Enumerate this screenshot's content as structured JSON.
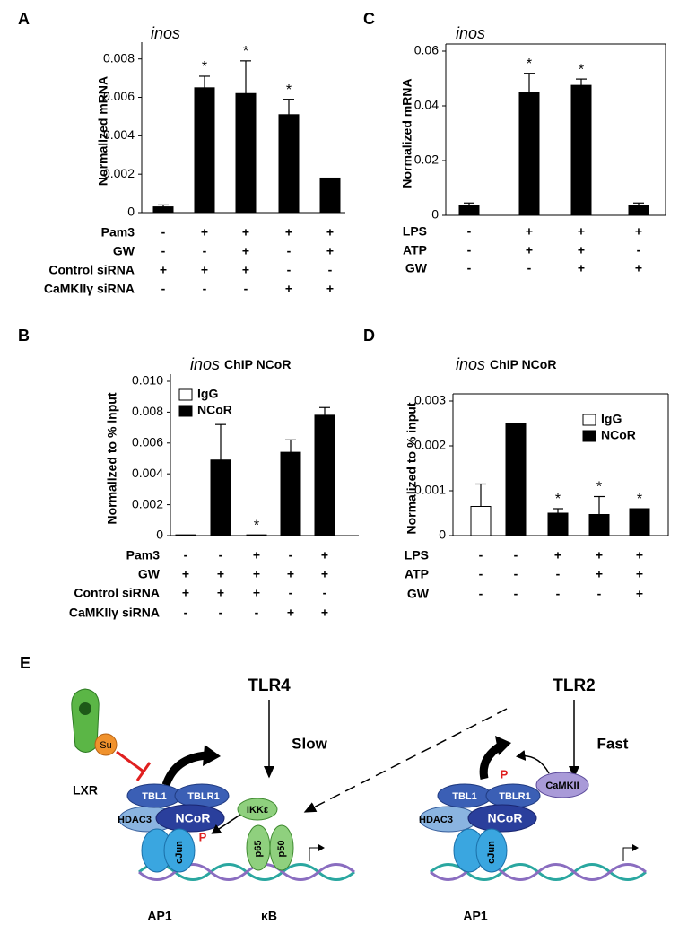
{
  "chart_data": [
    {
      "type": "bar",
      "panel": "A",
      "title": "inos",
      "ylabel": "Normalized mRNA",
      "ylim": [
        0,
        0.0085
      ],
      "yticks": [
        0,
        0.002,
        0.004,
        0.006,
        0.008
      ],
      "color": "#000000",
      "values": [
        0.0003,
        0.0065,
        0.0062,
        0.0051,
        0.0018
      ],
      "errors": [
        0.0001,
        0.0006,
        0.0017,
        0.0008,
        null
      ],
      "significance": [
        null,
        "*",
        "*",
        "*",
        null
      ],
      "conditions": [
        {
          "name": "Pam3",
          "marks": [
            "-",
            "+",
            "+",
            "+",
            "+"
          ]
        },
        {
          "name": "GW",
          "marks": [
            "-",
            "-",
            "+",
            "-",
            "+"
          ]
        },
        {
          "name": "Control siRNA",
          "marks": [
            "+",
            "+",
            "+",
            "-",
            "-"
          ]
        },
        {
          "name": "CaMKIIγ siRNA",
          "marks": [
            "-",
            "-",
            "-",
            "+",
            "+"
          ]
        }
      ]
    },
    {
      "type": "bar",
      "panel": "B",
      "title": "inos",
      "subtitle": "ChIP NCoR",
      "ylabel": "Normalized to % input",
      "ylim": [
        0,
        0.01
      ],
      "yticks": [
        0,
        0.002,
        0.004,
        0.006,
        0.008,
        {
          "value": 0.01,
          "label": "0.010"
        }
      ],
      "legend": "upper left",
      "series": [
        {
          "name": "IgG",
          "color": "#ffffff",
          "values": [
            5e-05,
            null,
            null,
            null,
            null
          ],
          "errors": [
            null,
            null,
            null,
            null,
            null
          ]
        },
        {
          "name": "NCoR",
          "color": "#000000",
          "values": [
            null,
            0.0049,
            5e-05,
            0.0054,
            0.0078
          ],
          "errors": [
            null,
            0.0023,
            null,
            0.0008,
            0.0005
          ]
        }
      ],
      "significance": [
        null,
        null,
        "*",
        null,
        null
      ],
      "conditions": [
        {
          "name": "Pam3",
          "marks": [
            "-",
            "-",
            "+",
            "-",
            "+"
          ]
        },
        {
          "name": "GW",
          "marks": [
            "+",
            "+",
            "+",
            "+",
            "+"
          ]
        },
        {
          "name": "Control siRNA",
          "marks": [
            "+",
            "+",
            "+",
            "-",
            "-"
          ]
        },
        {
          "name": "CaMKIIγ siRNA",
          "marks": [
            "-",
            "-",
            "-",
            "+",
            "+"
          ]
        }
      ]
    },
    {
      "type": "bar",
      "panel": "C",
      "title": "inos",
      "ylabel": "Normalized mRNA",
      "box": true,
      "ylim": [
        0,
        0.06
      ],
      "yticks": [
        0,
        0.02,
        0.04,
        0.06
      ],
      "color": "#000000",
      "values": [
        0.0035,
        0.0449,
        0.0475,
        0.0035
      ],
      "errors": [
        0.001,
        0.007,
        0.0023,
        0.001
      ],
      "significance": [
        null,
        "*",
        "*",
        null
      ],
      "conditions": [
        {
          "name": "LPS",
          "marks": [
            "-",
            "+",
            "+",
            "+"
          ]
        },
        {
          "name": "ATP",
          "marks": [
            "-",
            "+",
            "+",
            "-"
          ]
        },
        {
          "name": "GW",
          "marks": [
            "-",
            "-",
            "+",
            "+"
          ]
        }
      ]
    },
    {
      "type": "bar",
      "panel": "D",
      "title": "inos",
      "subtitle": "ChIP NCoR",
      "ylabel": "Normalized to % input",
      "box": true,
      "ylim": [
        0,
        0.003
      ],
      "yticks": [
        0,
        0.001,
        0.002,
        0.003
      ],
      "legend": "upper right",
      "series": [
        {
          "name": "IgG",
          "color": "#ffffff",
          "values": [
            0.00065,
            null,
            null,
            null,
            null
          ],
          "errors": [
            0.0005,
            null,
            null,
            null,
            null
          ]
        },
        {
          "name": "NCoR",
          "color": "#000000",
          "values": [
            null,
            0.0025,
            0.0005,
            0.00047,
            0.0006
          ],
          "errors": [
            null,
            null,
            0.0001,
            0.0004,
            null
          ]
        }
      ],
      "significance": [
        null,
        null,
        "*",
        "*",
        "*"
      ],
      "conditions": [
        {
          "name": "LPS",
          "marks": [
            "-",
            "-",
            "+",
            "+",
            "+"
          ]
        },
        {
          "name": "ATP",
          "marks": [
            "-",
            "-",
            "-",
            "+",
            "+"
          ]
        },
        {
          "name": "GW",
          "marks": [
            "-",
            "-",
            "-",
            "-",
            "+"
          ]
        }
      ]
    }
  ],
  "diagram": {
    "panel": "E",
    "tlr4": "TLR4",
    "tlr2": "TLR2",
    "slow": "Slow",
    "fast": "Fast",
    "lxr": "LXR",
    "su": "Su",
    "tbl1": "TBL1",
    "tblr1": "TBLR1",
    "hdac3": "HDAC3",
    "ncor": "NCoR",
    "cjun": "cJun",
    "phospho": "P",
    "ikke": "IKKε",
    "p65": "p65",
    "p50": "p50",
    "camkii": "CaMKII",
    "ap1": "AP1",
    "kb": "κB"
  }
}
